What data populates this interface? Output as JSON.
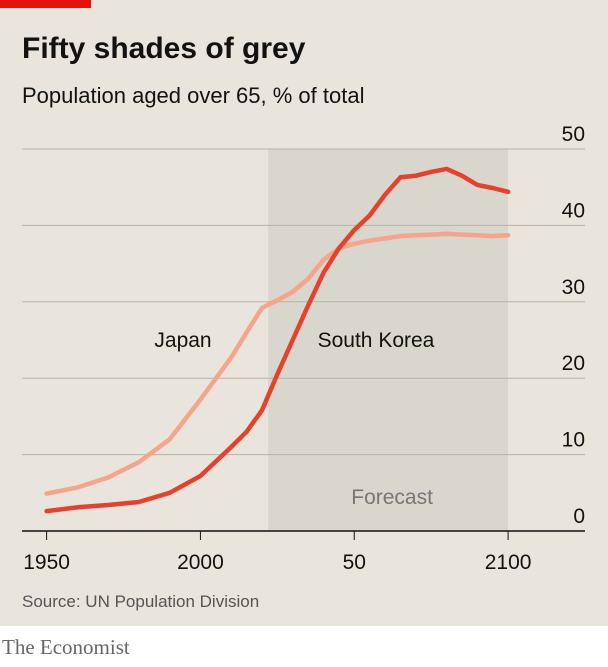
{
  "chart_data": {
    "type": "line",
    "title": "Fifty shades of grey",
    "subtitle": "Population aged over 65, % of total",
    "source": "Source: UN Population Division",
    "brand": "The Economist",
    "shade_label": "Forecast",
    "shade_span": [
      2022,
      2100
    ],
    "x": [
      1950,
      1960,
      1970,
      1980,
      1990,
      2000,
      2010,
      2015,
      2020,
      2025,
      2030,
      2035,
      2040,
      2045,
      2050,
      2055,
      2060,
      2065,
      2070,
      2075,
      2080,
      2085,
      2090,
      2095,
      2100
    ],
    "series": [
      {
        "name": "Japan",
        "color": "#f6a48a",
        "values": [
          4.9,
          5.7,
          7.0,
          9.0,
          12.0,
          17.2,
          22.7,
          26.0,
          29.2,
          30.2,
          31.3,
          33.0,
          35.5,
          37.0,
          37.6,
          38.0,
          38.3,
          38.6,
          38.7,
          38.8,
          38.9,
          38.8,
          38.7,
          38.6,
          38.7
        ]
      },
      {
        "name": "South Korea",
        "color": "#e6412c",
        "values": [
          2.6,
          3.1,
          3.4,
          3.8,
          5.0,
          7.2,
          11.0,
          13.0,
          15.8,
          20.5,
          25.0,
          29.5,
          33.8,
          37.0,
          39.4,
          41.3,
          44.0,
          46.3,
          46.5,
          47.0,
          47.4,
          46.5,
          45.3,
          44.9,
          44.4
        ]
      }
    ],
    "xlim": [
      1942,
      2125
    ],
    "xticks": [
      1950,
      2000,
      {
        "value": 2050,
        "label": "50"
      },
      2100
    ],
    "ylim": [
      0,
      50
    ],
    "yticks": [
      0,
      10,
      20,
      30,
      40,
      50
    ],
    "grid": true
  }
}
